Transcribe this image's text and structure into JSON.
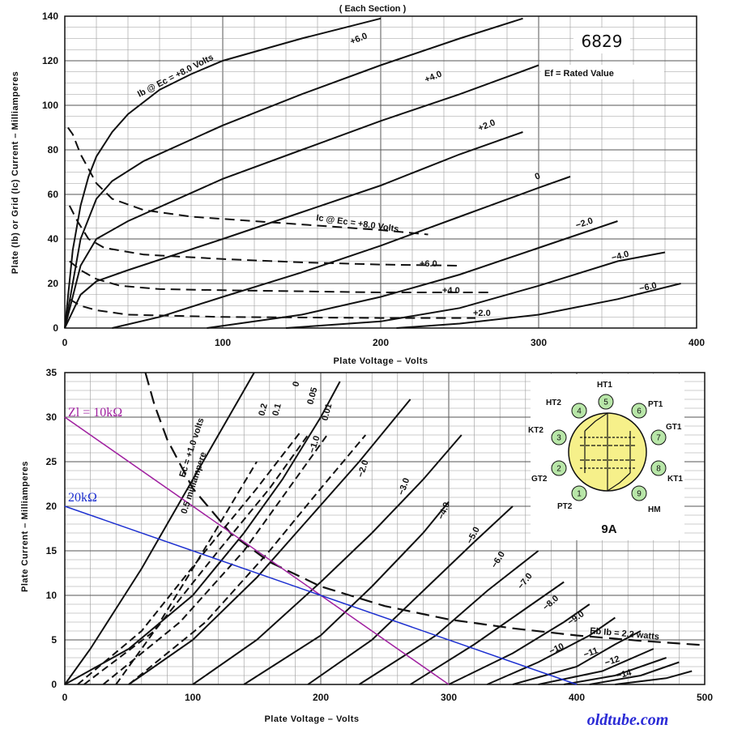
{
  "chart_data": [
    {
      "type": "line",
      "title": "( Each Section )",
      "tube_type": "6829",
      "heater_note": "Ef = Rated Value",
      "xlabel": "Plate Voltage – Volts",
      "ylabel": "Plate (Ib) or Grid (Ic) Current – Milliamperes",
      "xlim": [
        0,
        400
      ],
      "ylim": [
        0,
        140
      ],
      "x_ticks": [
        "0",
        "100",
        "200",
        "300",
        "400"
      ],
      "y_ticks": [
        "0",
        "20",
        "40",
        "60",
        "80",
        "100",
        "120",
        "140"
      ],
      "grid": true,
      "plate_curves": [
        {
          "label": "Ib @ Ec = +8.0 Volts",
          "points": [
            [
              0,
              0
            ],
            [
              5,
              35
            ],
            [
              10,
              55
            ],
            [
              15,
              68
            ],
            [
              20,
              77
            ],
            [
              30,
              88
            ],
            [
              40,
              96
            ],
            [
              60,
              107
            ],
            [
              80,
              114
            ],
            [
              100,
              120
            ],
            [
              150,
              130
            ],
            [
              200,
              139
            ]
          ]
        },
        {
          "label": "+6.0",
          "points": [
            [
              0,
              0
            ],
            [
              10,
              40
            ],
            [
              20,
              58
            ],
            [
              30,
              66
            ],
            [
              50,
              75
            ],
            [
              100,
              91
            ],
            [
              150,
              105
            ],
            [
              200,
              118
            ],
            [
              250,
              130
            ],
            [
              290,
              139
            ]
          ]
        },
        {
          "label": "+4.0",
          "points": [
            [
              0,
              0
            ],
            [
              10,
              28
            ],
            [
              20,
              40
            ],
            [
              40,
              48
            ],
            [
              100,
              67
            ],
            [
              150,
              80
            ],
            [
              200,
              93
            ],
            [
              250,
              105
            ],
            [
              300,
              118
            ]
          ]
        },
        {
          "label": "+2.0",
          "points": [
            [
              0,
              0
            ],
            [
              10,
              15
            ],
            [
              20,
              21
            ],
            [
              40,
              26
            ],
            [
              100,
              40
            ],
            [
              150,
              52
            ],
            [
              200,
              64
            ],
            [
              250,
              78
            ],
            [
              290,
              88
            ]
          ]
        },
        {
          "label": "0",
          "points": [
            [
              30,
              0
            ],
            [
              60,
              5
            ],
            [
              100,
              14
            ],
            [
              150,
              25
            ],
            [
              200,
              37
            ],
            [
              250,
              50
            ],
            [
              300,
              63
            ],
            [
              320,
              68
            ]
          ]
        },
        {
          "label": "−2.0",
          "points": [
            [
              90,
              0
            ],
            [
              150,
              6
            ],
            [
              200,
              14
            ],
            [
              250,
              24
            ],
            [
              300,
              36
            ],
            [
              350,
              48
            ]
          ]
        },
        {
          "label": "−4.0",
          "points": [
            [
              140,
              0
            ],
            [
              200,
              3
            ],
            [
              250,
              9
            ],
            [
              300,
              19
            ],
            [
              350,
              30
            ],
            [
              380,
              34
            ]
          ]
        },
        {
          "label": "−6.0",
          "points": [
            [
              210,
              0
            ],
            [
              250,
              2
            ],
            [
              300,
              6
            ],
            [
              350,
              13
            ],
            [
              390,
              20
            ]
          ]
        }
      ],
      "grid_curves": [
        {
          "label": "Ic @ Ec = +8.0 Volts",
          "points": [
            [
              2,
              90
            ],
            [
              5,
              87
            ],
            [
              10,
              78
            ],
            [
              20,
              65
            ],
            [
              30,
              58
            ],
            [
              50,
              53
            ],
            [
              80,
              50
            ],
            [
              120,
              48
            ],
            [
              160,
              46
            ],
            [
              200,
              44
            ],
            [
              230,
              42
            ]
          ]
        },
        {
          "label": "+6.0",
          "points": [
            [
              3,
              55
            ],
            [
              8,
              48
            ],
            [
              15,
              40
            ],
            [
              25,
              36
            ],
            [
              50,
              33
            ],
            [
              100,
              31
            ],
            [
              150,
              29.5
            ],
            [
              200,
              28.5
            ],
            [
              250,
              28
            ]
          ]
        },
        {
          "label": "+4.0",
          "points": [
            [
              3,
              30
            ],
            [
              10,
              26
            ],
            [
              20,
              22
            ],
            [
              35,
              19
            ],
            [
              60,
              17.5
            ],
            [
              100,
              17
            ],
            [
              200,
              16
            ],
            [
              270,
              16
            ]
          ]
        },
        {
          "label": "+2.0",
          "points": [
            [
              3,
              13
            ],
            [
              10,
              10
            ],
            [
              20,
              8
            ],
            [
              40,
              6
            ],
            [
              100,
              5
            ],
            [
              200,
              4.5
            ],
            [
              260,
              4.5
            ]
          ]
        }
      ]
    },
    {
      "type": "line",
      "title": "",
      "xlabel": "Plate Voltage – Volts",
      "ylabel": "Plate Current – Milliamperes",
      "xlim": [
        0,
        500
      ],
      "ylim": [
        0,
        35
      ],
      "x_ticks": [
        "0",
        "100",
        "200",
        "300",
        "400",
        "500"
      ],
      "y_ticks": [
        "0",
        "5",
        "10",
        "15",
        "20",
        "25",
        "30",
        "35"
      ],
      "grid": true,
      "plate_curves": [
        {
          "label": "Ec = +1.0 volts",
          "points": [
            [
              0,
              0
            ],
            [
              20,
              4
            ],
            [
              40,
              8.5
            ],
            [
              60,
              13
            ],
            [
              80,
              18
            ],
            [
              100,
              23
            ],
            [
              120,
              28
            ],
            [
              140,
              33
            ],
            [
              148,
              35
            ]
          ]
        },
        {
          "label": "0",
          "points": [
            [
              0,
              0
            ],
            [
              50,
              4
            ],
            [
              100,
              10
            ],
            [
              140,
              17
            ],
            [
              170,
              23
            ],
            [
              200,
              30
            ],
            [
              215,
              34
            ]
          ]
        },
        {
          "label": "−1.0",
          "points": [
            [
              50,
              0
            ],
            [
              100,
              5
            ],
            [
              150,
              12
            ],
            [
              190,
              18.5
            ],
            [
              230,
              25
            ],
            [
              270,
              32
            ]
          ]
        },
        {
          "label": "−2.0",
          "points": [
            [
              100,
              0
            ],
            [
              150,
              5
            ],
            [
              200,
              11.5
            ],
            [
              240,
              17
            ],
            [
              280,
              23
            ],
            [
              310,
              28
            ]
          ]
        },
        {
          "label": "−3.0",
          "points": [
            [
              140,
              0
            ],
            [
              200,
              5.5
            ],
            [
              240,
              11
            ],
            [
              280,
              17
            ],
            [
              300,
              20.5
            ]
          ]
        },
        {
          "label": "−4.0",
          "points": [
            [
              190,
              0
            ],
            [
              240,
              5
            ],
            [
              280,
              10.5
            ],
            [
              320,
              16
            ],
            [
              350,
              20
            ]
          ]
        },
        {
          "label": "−5.0",
          "points": [
            [
              230,
              0
            ],
            [
              290,
              5.5
            ],
            [
              330,
              10.5
            ],
            [
              370,
              15
            ]
          ]
        },
        {
          "label": "−6.0",
          "points": [
            [
              270,
              0
            ],
            [
              320,
              4.5
            ],
            [
              360,
              8.5
            ],
            [
              390,
              11.5
            ]
          ]
        },
        {
          "label": "−7.0",
          "points": [
            [
              300,
              0
            ],
            [
              350,
              3.5
            ],
            [
              390,
              7
            ],
            [
              410,
              9
            ]
          ]
        },
        {
          "label": "−8.0",
          "points": [
            [
              330,
              0
            ],
            [
              370,
              2.5
            ],
            [
              410,
              5.5
            ],
            [
              430,
              7.5
            ]
          ]
        },
        {
          "label": "−9.0",
          "points": [
            [
              350,
              0
            ],
            [
              400,
              2
            ],
            [
              430,
              4.5
            ],
            [
              450,
              6
            ]
          ]
        },
        {
          "label": "−10",
          "points": [
            [
              370,
              0
            ],
            [
              420,
              1.5
            ],
            [
              460,
              4
            ]
          ]
        },
        {
          "label": "−11",
          "points": [
            [
              390,
              0
            ],
            [
              430,
              1
            ],
            [
              470,
              3
            ]
          ]
        },
        {
          "label": "−12",
          "points": [
            [
              410,
              0
            ],
            [
              450,
              1
            ],
            [
              480,
              2.5
            ]
          ]
        },
        {
          "label": "−14",
          "points": [
            [
              430,
              0
            ],
            [
              470,
              0.7
            ],
            [
              490,
              1.5
            ]
          ]
        }
      ],
      "grid_current_curves": [
        {
          "label": "0.5 milliampere",
          "points": [
            [
              40,
              0
            ],
            [
              70,
              6
            ],
            [
              100,
              13
            ],
            [
              125,
              19
            ],
            [
              150,
              25
            ]
          ]
        },
        {
          "label": "0.2",
          "points": [
            [
              10,
              0
            ],
            [
              60,
              6
            ],
            [
              110,
              15
            ],
            [
              150,
              22
            ],
            [
              185,
              28.5
            ]
          ]
        },
        {
          "label": "0.1",
          "points": [
            [
              15,
              0
            ],
            [
              70,
              6
            ],
            [
              120,
              15
            ],
            [
              160,
              22
            ],
            [
              190,
              28
            ]
          ]
        },
        {
          "label": "0.05",
          "points": [
            [
              30,
              0
            ],
            [
              90,
              7
            ],
            [
              140,
              15
            ],
            [
              175,
              22
            ],
            [
              205,
              28
            ]
          ]
        },
        {
          "label": "0.01",
          "points": [
            [
              50,
              0
            ],
            [
              110,
              7
            ],
            [
              160,
              15
            ],
            [
              200,
              22
            ],
            [
              235,
              28
            ]
          ]
        }
      ],
      "dissipation_curve": {
        "label": "Eb Ib = 2.2 watts",
        "points": [
          [
            63,
            35
          ],
          [
            70,
            31.4
          ],
          [
            80,
            27.5
          ],
          [
            100,
            22
          ],
          [
            130,
            16.9
          ],
          [
            160,
            13.75
          ],
          [
            200,
            11
          ],
          [
            250,
            8.8
          ],
          [
            300,
            7.3
          ],
          [
            350,
            6.3
          ],
          [
            400,
            5.5
          ],
          [
            450,
            4.9
          ],
          [
            500,
            4.4
          ]
        ]
      },
      "load_lines": [
        {
          "name": "Zl = 10kΩ",
          "color": "#a020a0",
          "points": [
            [
              0,
              30
            ],
            [
              300,
              0
            ]
          ]
        },
        {
          "name": "20kΩ",
          "color": "#1c2fd0",
          "points": [
            [
              0,
              20
            ],
            [
              400,
              0
            ]
          ]
        }
      ],
      "base_diagram": {
        "base": "9A",
        "pins": [
          {
            "num": "1",
            "name": "PT2"
          },
          {
            "num": "2",
            "name": "GT2"
          },
          {
            "num": "3",
            "name": "KT2"
          },
          {
            "num": "4",
            "name": "HT2"
          },
          {
            "num": "5",
            "name": "HT1"
          },
          {
            "num": "6",
            "name": "PT1"
          },
          {
            "num": "7",
            "name": "GT1"
          },
          {
            "num": "8",
            "name": "KT1"
          },
          {
            "num": "9",
            "name": "HM"
          }
        ]
      }
    }
  ],
  "watermark": "oldtube.com"
}
